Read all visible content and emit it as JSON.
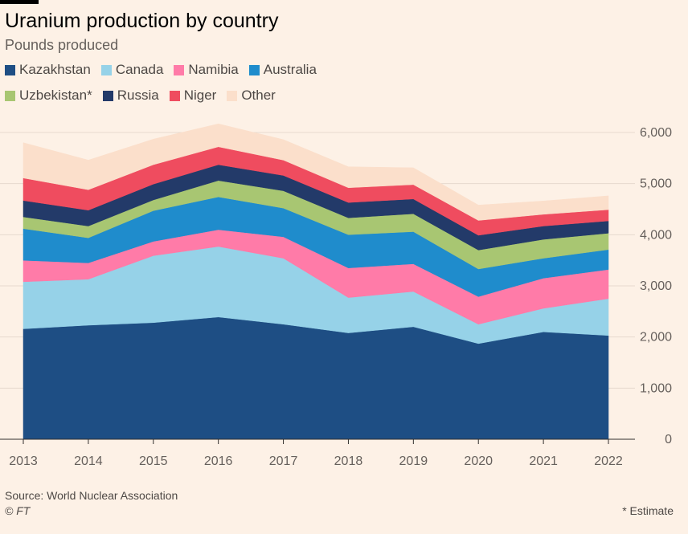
{
  "title": "Uranium production by country",
  "subtitle": "Pounds produced",
  "source": "Source: World Nuclear Association",
  "copyright": "© FT",
  "footnote": "* Estimate",
  "legend": [
    {
      "label": "Kazakhstan",
      "color": "#1e4e84"
    },
    {
      "label": "Canada",
      "color": "#96d2e8"
    },
    {
      "label": "Namibia",
      "color": "#ff7ba8"
    },
    {
      "label": "Australia",
      "color": "#1f8ccc"
    },
    {
      "label": "Uzbekistan*",
      "color": "#a8c672"
    },
    {
      "label": "Russia",
      "color": "#233a69"
    },
    {
      "label": "Niger",
      "color": "#ef4c5f"
    },
    {
      "label": "Other",
      "color": "#fbdfcb"
    }
  ],
  "chart_data": {
    "type": "area",
    "stacked": true,
    "title": "Uranium production by country",
    "subtitle": "Pounds produced",
    "x": [
      "2013",
      "2014",
      "2015",
      "2016",
      "2017",
      "2018",
      "2019",
      "2020",
      "2021",
      "2022"
    ],
    "ylim": [
      0,
      6000
    ],
    "yticks": [
      "0",
      "1,000",
      "2,000",
      "3,000",
      "4,000",
      "5,000",
      "6,000"
    ],
    "ytick_values": [
      0,
      1000,
      2000,
      3000,
      4000,
      5000,
      6000
    ],
    "grid": true,
    "legend_position": "top-left",
    "series": [
      {
        "name": "Kazakhstan",
        "color": "#1e4e84",
        "values": [
          2160,
          2230,
          2280,
          2390,
          2250,
          2080,
          2200,
          1870,
          2100,
          2030
        ]
      },
      {
        "name": "Canada",
        "color": "#96d2e8",
        "values": [
          920,
          900,
          1310,
          1380,
          1290,
          690,
          690,
          380,
          460,
          720
        ]
      },
      {
        "name": "Namibia",
        "color": "#ff7ba8",
        "values": [
          420,
          320,
          280,
          330,
          420,
          580,
          540,
          540,
          590,
          570
        ]
      },
      {
        "name": "Australia",
        "color": "#1f8ccc",
        "values": [
          620,
          490,
          600,
          640,
          560,
          650,
          630,
          540,
          390,
          390
        ]
      },
      {
        "name": "Uzbekistan*",
        "color": "#a8c672",
        "values": [
          230,
          230,
          210,
          320,
          340,
          330,
          350,
          370,
          370,
          320
        ]
      },
      {
        "name": "Russia",
        "color": "#233a69",
        "values": [
          320,
          310,
          310,
          310,
          300,
          300,
          290,
          290,
          260,
          240
        ]
      },
      {
        "name": "Niger",
        "color": "#ef4c5f",
        "values": [
          440,
          400,
          380,
          350,
          300,
          290,
          280,
          290,
          230,
          220
        ]
      },
      {
        "name": "Other",
        "color": "#fbdfcb",
        "values": [
          690,
          580,
          500,
          450,
          400,
          410,
          330,
          300,
          260,
          270
        ]
      }
    ]
  }
}
